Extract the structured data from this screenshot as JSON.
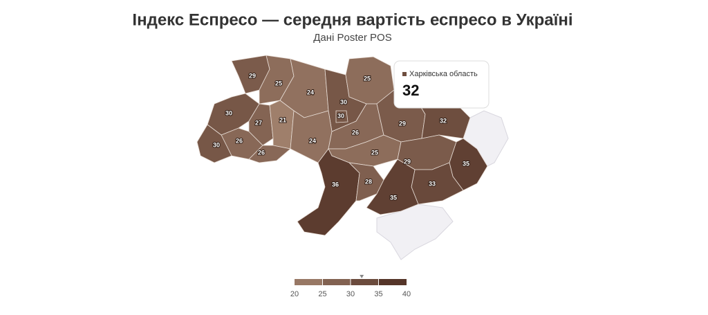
{
  "chart_data": {
    "type": "choropleth",
    "title": "Індекс Еспресо — середня вартість еспресо в Україні",
    "subtitle": "Дані Poster POS",
    "values": [
      29,
      25,
      24,
      30,
      30,
      25,
      30,
      27,
      21,
      26,
      30,
      26,
      24,
      26,
      29,
      32,
      25,
      29,
      35,
      36,
      28,
      33,
      35
    ],
    "color_low": "#a3836f",
    "color_high": "#4a2a1f",
    "clim": [
      20,
      40
    ],
    "cticks": [
      20,
      25,
      30,
      35,
      40
    ],
    "tooltip": {
      "label": "Харківська область",
      "value": 32
    }
  }
}
